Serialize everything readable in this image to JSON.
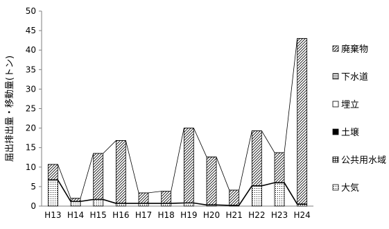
{
  "chart_data": {
    "type": "bar",
    "stacked": true,
    "ylabel": "届出排出量・移動量(トン)",
    "xlabel": "",
    "ylim": [
      0,
      50
    ],
    "yticks": [
      0,
      5,
      10,
      15,
      20,
      25,
      30,
      35,
      40,
      45,
      50
    ],
    "grid": false,
    "legend_position": "right",
    "categories": [
      "H13",
      "H14",
      "H15",
      "H16",
      "H17",
      "H18",
      "H19",
      "H20",
      "H21",
      "H22",
      "H23",
      "H24"
    ],
    "series": [
      {
        "name": "大気",
        "pattern": "dots",
        "values": [
          6.7,
          1.2,
          1.7,
          0.7,
          0.7,
          0.7,
          0.8,
          0.3,
          0.2,
          5.2,
          6.0,
          0.5
        ]
      },
      {
        "name": "公共用水域",
        "pattern": "grid",
        "values": [
          0,
          0,
          0,
          0,
          0,
          0,
          0,
          0,
          0,
          0,
          0,
          0
        ]
      },
      {
        "name": "土壌",
        "pattern": "solid",
        "values": [
          0,
          0,
          0,
          0,
          0,
          0,
          0,
          0,
          0,
          0,
          0,
          0
        ]
      },
      {
        "name": "埋立",
        "pattern": "blank",
        "values": [
          0,
          0,
          0,
          0,
          0,
          0,
          0,
          0,
          0,
          0,
          0,
          0
        ]
      },
      {
        "name": "下水道",
        "pattern": "hline",
        "values": [
          0,
          0,
          0,
          0,
          0,
          0,
          0,
          0,
          0,
          0,
          0,
          0
        ]
      },
      {
        "name": "廃棄物",
        "pattern": "diag",
        "values": [
          4.0,
          0.8,
          11.8,
          16.1,
          2.7,
          3.1,
          19.2,
          12.3,
          3.9,
          14.1,
          7.7,
          42.5
        ]
      }
    ]
  }
}
